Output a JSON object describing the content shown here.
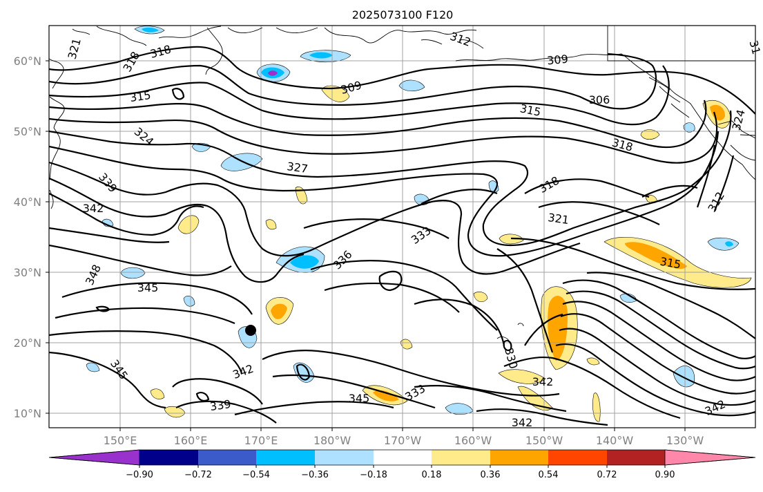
{
  "map": {
    "title": "2025073100 F120",
    "lat_labels": [
      "60°N",
      "50°N",
      "40°N",
      "30°N",
      "20°N",
      "10°N"
    ],
    "lon_labels": [
      "150°E",
      "160°E",
      "170°E",
      "180°W",
      "170°W",
      "160°W",
      "150°W",
      "140°W",
      "130°W"
    ],
    "contour_labels": [
      {
        "text": "321"
      },
      {
        "text": "318"
      },
      {
        "text": "318"
      },
      {
        "text": "312"
      },
      {
        "text": "309"
      },
      {
        "text": "309"
      },
      {
        "text": "315"
      },
      {
        "text": "306"
      },
      {
        "text": "315"
      },
      {
        "text": "318"
      },
      {
        "text": "324"
      },
      {
        "text": "324"
      },
      {
        "text": "327"
      },
      {
        "text": "339"
      },
      {
        "text": "342"
      },
      {
        "text": "318"
      },
      {
        "text": "321"
      },
      {
        "text": "333"
      },
      {
        "text": "336"
      },
      {
        "text": "348"
      },
      {
        "text": "345"
      },
      {
        "text": "315"
      },
      {
        "text": "312"
      },
      {
        "text": "345"
      },
      {
        "text": "342"
      },
      {
        "text": "330"
      },
      {
        "text": "342"
      },
      {
        "text": "345"
      },
      {
        "text": "333"
      },
      {
        "text": "339"
      },
      {
        "text": "342"
      },
      {
        "text": "342"
      },
      {
        "text": "31"
      }
    ]
  },
  "colorbar": {
    "colors": [
      "#9932cc",
      "#00008b",
      "#3a5bc9",
      "#00bfff",
      "#aee0ff",
      "#ffffff",
      "#ffeb8a",
      "#ffa500",
      "#ff4500",
      "#b22222",
      "#ff88aa"
    ],
    "tick_labels": [
      "−0.90",
      "−0.72",
      "−0.54",
      "−0.36",
      "−0.18",
      "0.18",
      "0.36",
      "0.54",
      "0.72",
      "0.90"
    ]
  }
}
